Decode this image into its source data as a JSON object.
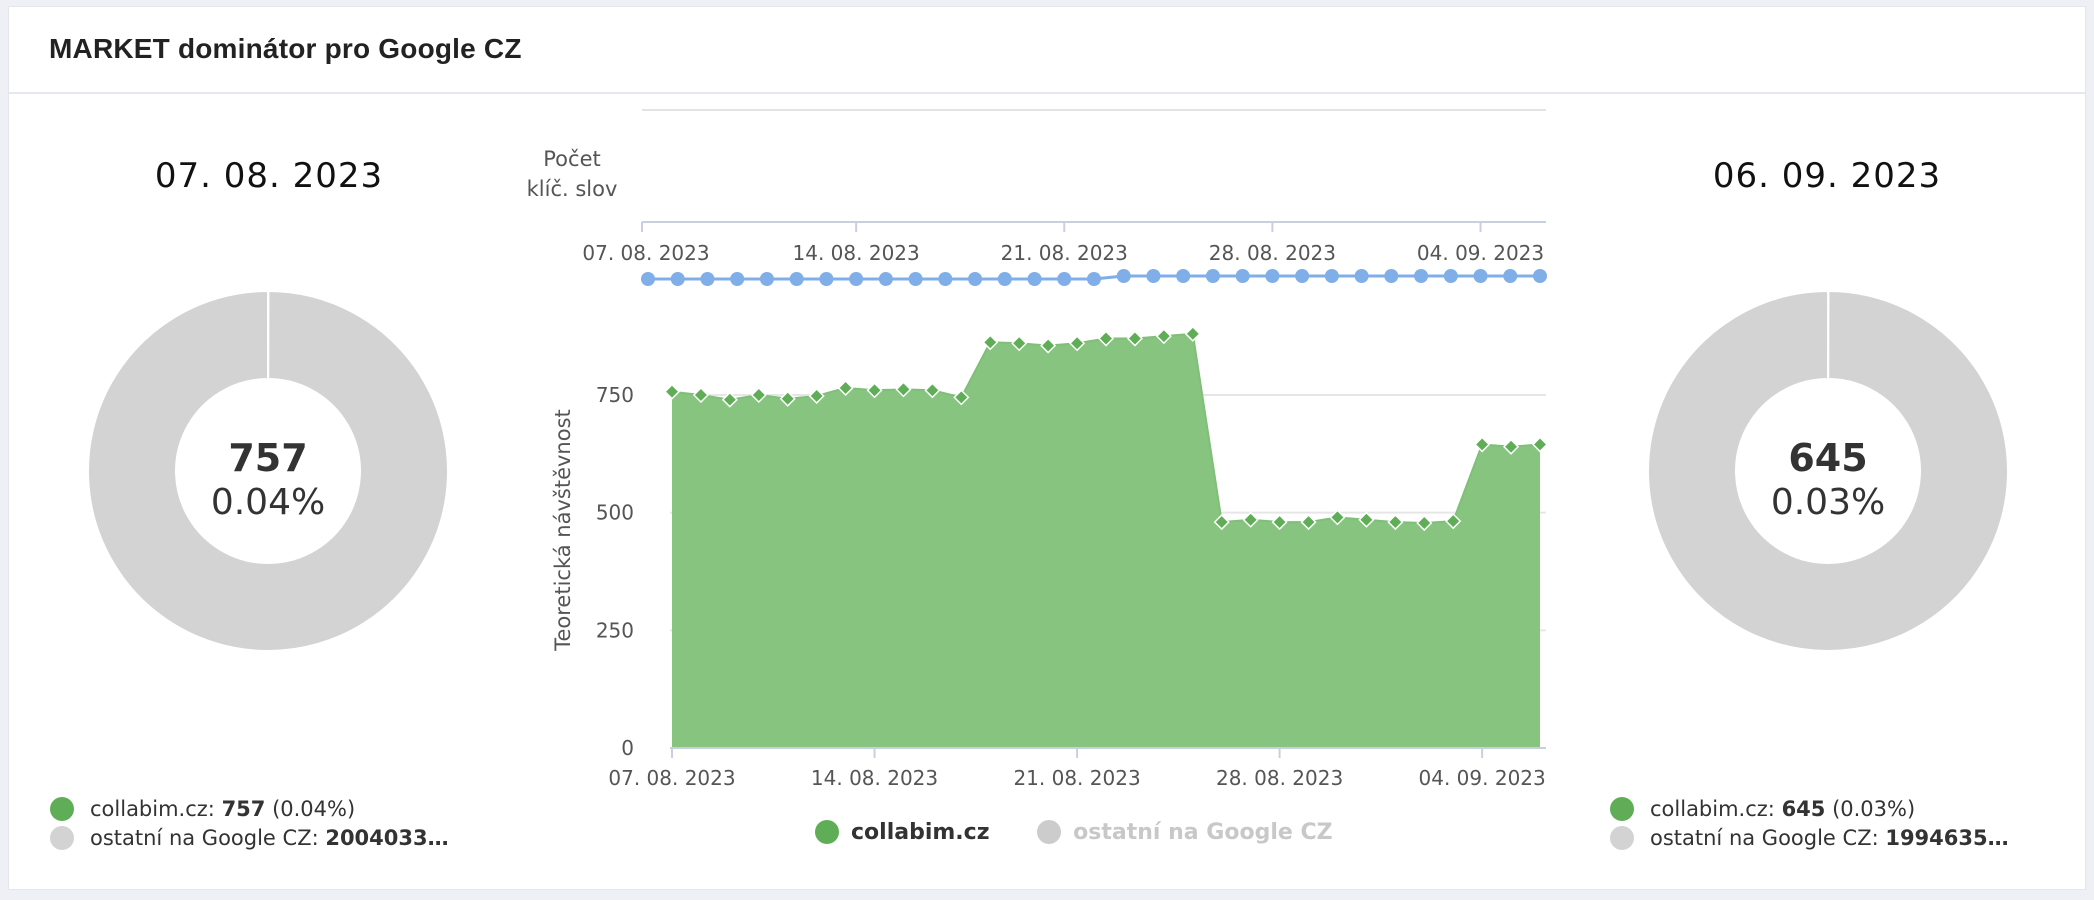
{
  "panel": {
    "title": "MARKET dominátor pro Google CZ"
  },
  "colors": {
    "green": "#5fae57",
    "green_fill": "#86c47f",
    "grey": "#d3d3d3",
    "blue": "#7faee8"
  },
  "left": {
    "date": "07. 08. 2023",
    "center_value": "757",
    "center_pct": "0.04%",
    "legend": [
      {
        "prefix": "collabim.cz: ",
        "value": "757",
        "suffix": " (0.04%)",
        "color": "#5fae57"
      },
      {
        "prefix": "ostatní na Google CZ: ",
        "value": "2004033…",
        "suffix": "",
        "color": "#d3d3d3"
      }
    ]
  },
  "right": {
    "date": "06. 09. 2023",
    "center_value": "645",
    "center_pct": "0.03%",
    "legend": [
      {
        "prefix": "collabim.cz: ",
        "value": "645",
        "suffix": " (0.03%)",
        "color": "#5fae57"
      },
      {
        "prefix": "ostatní na Google CZ: ",
        "value": "1994635…",
        "suffix": "",
        "color": "#d3d3d3"
      }
    ]
  },
  "center_legend": [
    {
      "label": "collabim.cz",
      "color": "#5fae57",
      "text_color": "#333333"
    },
    {
      "label": "ostatní na Google CZ",
      "color": "#cccccc",
      "text_color": "#c8c8c8"
    }
  ],
  "chart_data": [
    {
      "type": "pie",
      "variant": "donut",
      "title": "07. 08. 2023",
      "slices": [
        {
          "name": "collabim.cz",
          "value": 757,
          "percent": 0.04
        },
        {
          "name": "ostatní na Google CZ",
          "value": 2004033,
          "percent": 99.96
        }
      ]
    },
    {
      "type": "line",
      "ylabel": "Počet klíč. slov",
      "x_ticks": [
        "07. 08. 2023",
        "14. 08. 2023",
        "21. 08. 2023",
        "28. 08. 2023",
        "04. 09. 2023"
      ],
      "x_start": "2023-08-07",
      "x_end": "2023-09-06",
      "series": [
        {
          "name": "Počet klíč. slov",
          "relative_level": [
            0.3,
            0.3,
            0.3,
            0.3,
            0.3,
            0.3,
            0.3,
            0.3,
            0.3,
            0.3,
            0.3,
            0.3,
            0.3,
            0.3,
            0.3,
            0.3,
            0.31,
            0.31,
            0.31,
            0.31,
            0.31,
            0.31,
            0.31,
            0.31,
            0.31,
            0.31,
            0.31,
            0.31,
            0.31,
            0.31,
            0.31
          ]
        }
      ],
      "grid": true
    },
    {
      "type": "area",
      "ylabel": "Teoretická návštěvnost",
      "ylim": [
        0,
        1000
      ],
      "y_ticks": [
        0,
        250,
        500,
        750
      ],
      "x_ticks": [
        "07. 08. 2023",
        "14. 08. 2023",
        "21. 08. 2023",
        "28. 08. 2023",
        "04. 09. 2023"
      ],
      "x_start": "2023-08-07",
      "x_end": "2023-09-06",
      "series": [
        {
          "name": "collabim.cz",
          "values": [
            757,
            750,
            740,
            750,
            742,
            748,
            765,
            760,
            762,
            760,
            745,
            862,
            860,
            855,
            860,
            870,
            870,
            875,
            880,
            480,
            485,
            480,
            480,
            490,
            485,
            480,
            478,
            482,
            645,
            640,
            645
          ]
        }
      ],
      "grid": true,
      "legend": "bottom"
    },
    {
      "type": "pie",
      "variant": "donut",
      "title": "06. 09. 2023",
      "slices": [
        {
          "name": "collabim.cz",
          "value": 645,
          "percent": 0.03
        },
        {
          "name": "ostatní na Google CZ",
          "value": 1994635,
          "percent": 99.97
        }
      ]
    }
  ]
}
